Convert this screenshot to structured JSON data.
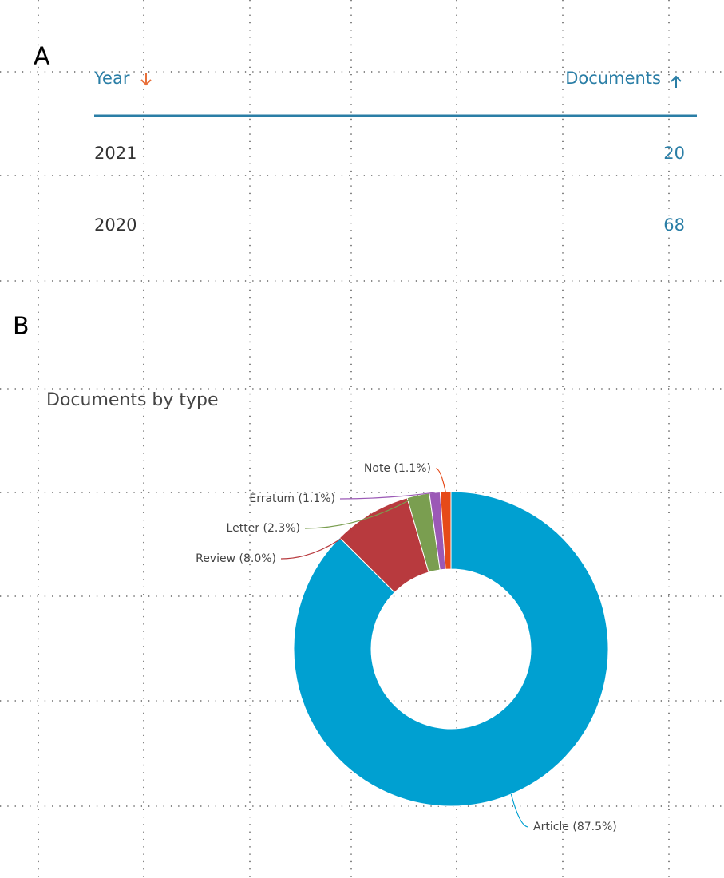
{
  "panels": [
    "A",
    "B"
  ],
  "table": {
    "columns": [
      "Year",
      "Documents"
    ],
    "rows": [
      [
        2021,
        20
      ],
      [
        2020,
        68
      ]
    ]
  },
  "chart_data": {
    "type": "pie",
    "title": "Documents by type",
    "values": [
      87.5,
      8.0,
      2.3,
      1.1,
      1.1
    ],
    "value_labels": [
      "Article (87.5%)",
      "Review (8.0%)",
      "Letter (2.3%)",
      "Erratum (1.1%)",
      "Note (1.1%)"
    ],
    "colors": [
      "#00a0d1",
      "#b83a3e",
      "#7a9e50",
      "#9b59b6",
      "#e64a19"
    ]
  }
}
